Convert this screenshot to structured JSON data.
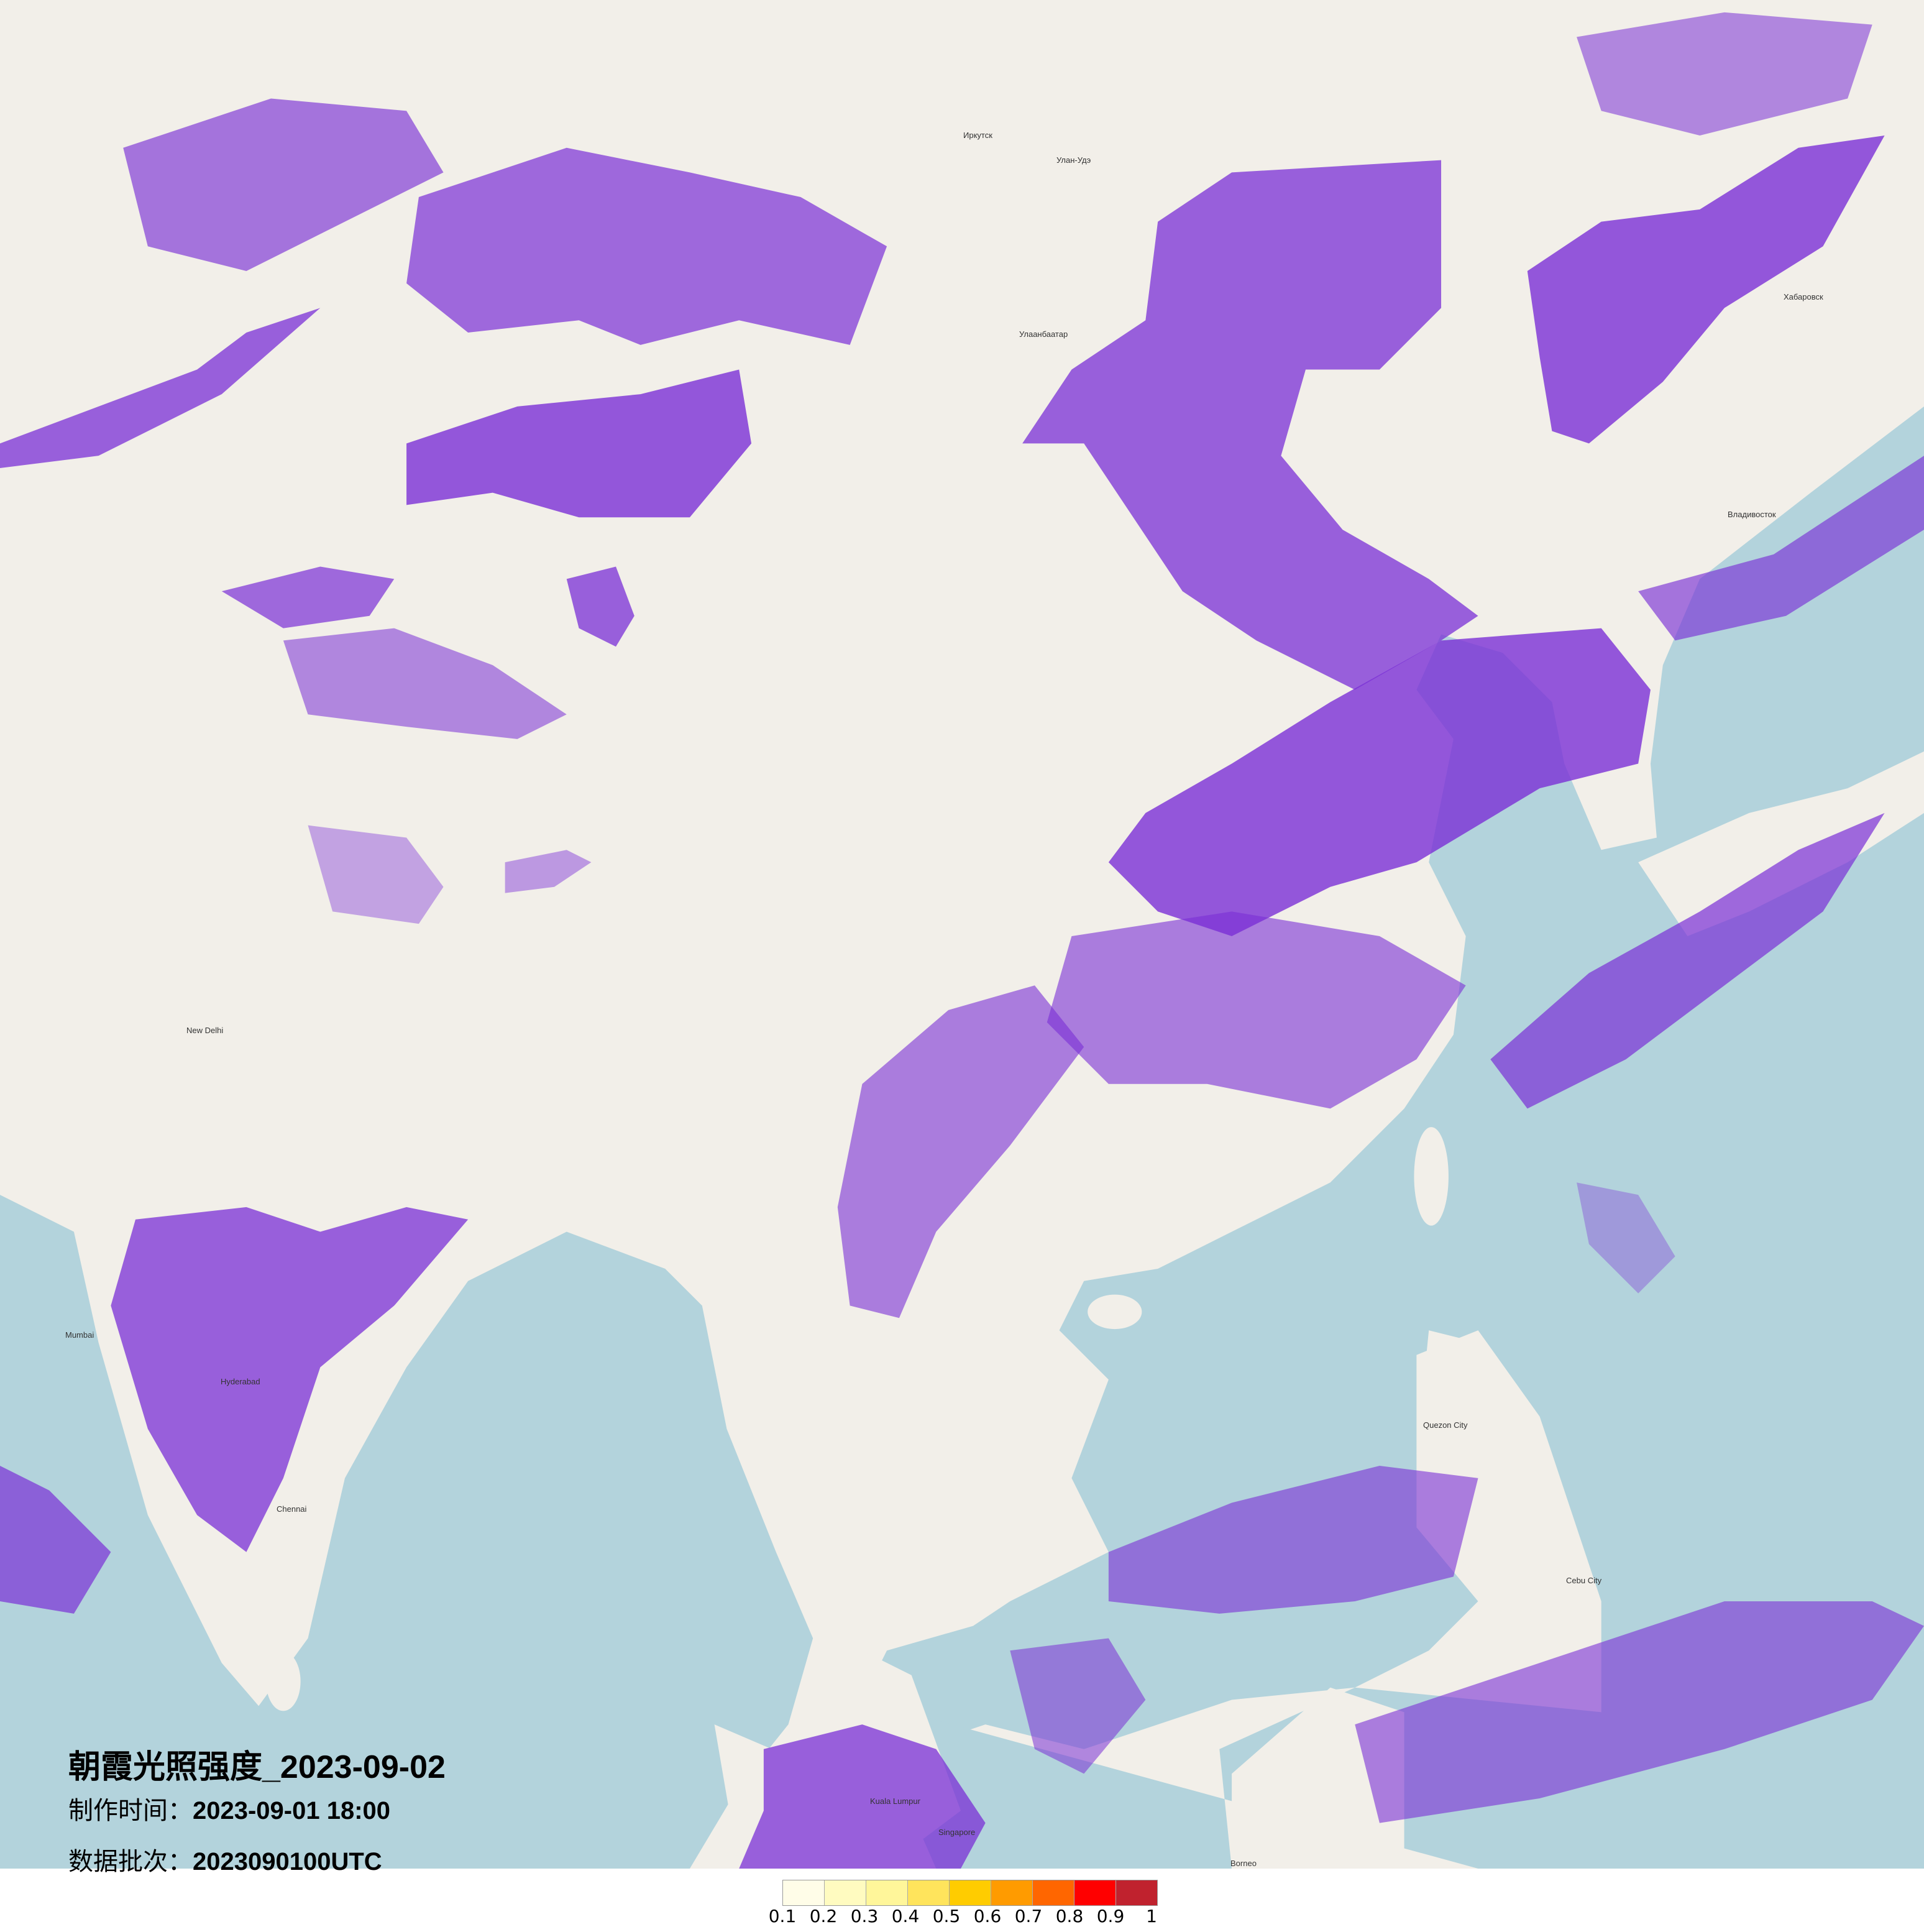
{
  "title": "朝霞光照强度_2023-09-02",
  "made_label": "制作时间：",
  "made_value": "2023-09-01 18:00",
  "batch_label": "数据批次：",
  "batch_value": "2023090100UTC",
  "legend": {
    "colors": [
      "#fffde8",
      "#fffbc0",
      "#fff69a",
      "#ffe45c",
      "#ffcc00",
      "#ff9b00",
      "#ff6600",
      "#ff0000",
      "#c0222e"
    ],
    "ticks": [
      "0.1",
      "0.2",
      "0.3",
      "0.4",
      "0.5",
      "0.6",
      "0.7",
      "0.8",
      "0.9",
      "1"
    ]
  },
  "colors": {
    "land": "#f2efe9",
    "sea": "#b3d3dc",
    "overlay": "#7a2fd6"
  },
  "cities": [
    "Иркутск",
    "Улан-Удэ",
    "Улаанбаатар",
    "Хабаровск",
    "Владивосток",
    "New Delhi",
    "Mumbai",
    "Hyderabad",
    "Chennai",
    "Cebu City",
    "Quezon City",
    "Kuala Lumpur",
    "Singapore",
    "Borneo"
  ]
}
